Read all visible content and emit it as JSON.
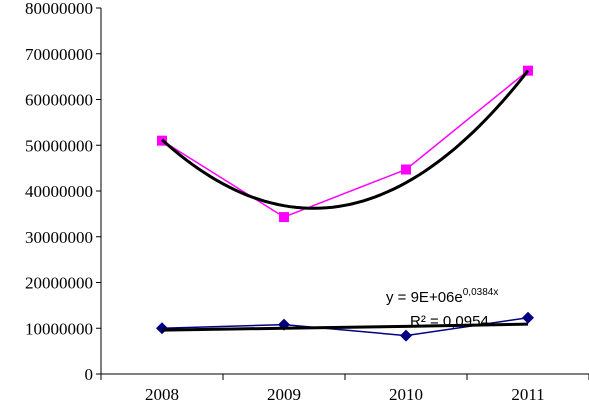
{
  "chart_data": {
    "type": "line",
    "title": "",
    "xlabel": "",
    "ylabel": "",
    "categories": [
      "2008",
      "2009",
      "2010",
      "2011"
    ],
    "ylim": [
      0,
      80000000
    ],
    "y_ticks": [
      "0",
      "10000000",
      "20000000",
      "30000000",
      "40000000",
      "50000000",
      "60000000",
      "70000000",
      "80000000"
    ],
    "grid": false,
    "legend": "none",
    "series": [
      {
        "values": [
          51000000,
          34300000,
          44700000,
          66300000
        ],
        "color": "#ff00ff",
        "marker": "square"
      },
      {
        "values": [
          10000000,
          10800000,
          8400000,
          12300000
        ],
        "color": "#000080",
        "marker": "diamond"
      }
    ],
    "trendlines": [
      {
        "type": "polynomial",
        "order": 2,
        "series_index": 0,
        "color": "#000000",
        "values": [
          50800000,
          38000000,
          40600000,
          66700000
        ]
      },
      {
        "type": "exponential",
        "series_index": 1,
        "color": "#000000",
        "values": [
          9600000,
          10000000,
          10400000,
          10900000
        ]
      }
    ],
    "annotation": {
      "equation_prefix": "y = 9E+06e",
      "equation_exponent": "0,0384x",
      "r_squared": "R² = 0,0954"
    }
  }
}
